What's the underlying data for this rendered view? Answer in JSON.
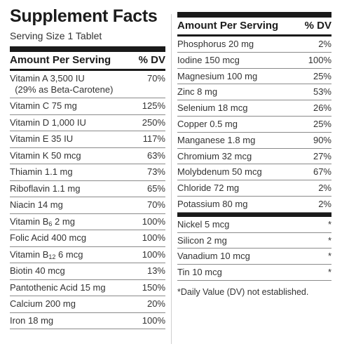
{
  "title": "Supplement Facts",
  "serving": "Serving Size 1 Tablet",
  "header": {
    "amount": "Amount Per Serving",
    "dv": "% DV"
  },
  "left_rows": [
    {
      "name": "Vitamin A 3,500 IU",
      "note": "(29% as Beta-Carotene)",
      "dv": "70%"
    },
    {
      "name": "Vitamin C 75 mg",
      "dv": "125%"
    },
    {
      "name": "Vitamin D 1,000 IU",
      "dv": "250%"
    },
    {
      "name": "Vitamin E 35 IU",
      "dv": "117%"
    },
    {
      "name": "Vitamin K 50 mcg",
      "dv": "63%"
    },
    {
      "name": "Thiamin 1.1 mg",
      "dv": "73%"
    },
    {
      "name": "Riboflavin 1.1 mg",
      "dv": "65%"
    },
    {
      "name": "Niacin 14 mg",
      "dv": "70%"
    },
    {
      "pre": "Vitamin B",
      "subscript": "6",
      "post": " 2 mg",
      "dv": "100%"
    },
    {
      "name": "Folic Acid 400 mcg",
      "dv": "100%"
    },
    {
      "pre": "Vitamin B",
      "subscript": "12",
      "post": " 6 mcg",
      "dv": "100%"
    },
    {
      "name": "Biotin 40 mcg",
      "dv": "13%"
    },
    {
      "name": "Pantothenic Acid 15 mg",
      "dv": "150%"
    },
    {
      "name": "Calcium 200 mg",
      "dv": "20%"
    },
    {
      "name": "Iron 18 mg",
      "dv": "100%"
    }
  ],
  "right_rows": [
    {
      "name": "Phosphorus 20 mg",
      "dv": "2%"
    },
    {
      "name": "Iodine 150 mcg",
      "dv": "100%"
    },
    {
      "name": "Magnesium 100 mg",
      "dv": "25%"
    },
    {
      "name": "Zinc 8 mg",
      "dv": "53%"
    },
    {
      "name": "Selenium 18 mcg",
      "dv": "26%"
    },
    {
      "name": "Copper 0.5 mg",
      "dv": "25%"
    },
    {
      "name": "Manganese 1.8 mg",
      "dv": "90%"
    },
    {
      "name": "Chromium 32 mcg",
      "dv": "27%"
    },
    {
      "name": "Molybdenum 50 mcg",
      "dv": "67%"
    },
    {
      "name": "Chloride 72 mg",
      "dv": "2%"
    },
    {
      "name": "Potassium 80 mg",
      "dv": "2%"
    }
  ],
  "right_rows2": [
    {
      "name": "Nickel 5 mcg",
      "dv": "*"
    },
    {
      "name": "Silicon 2 mg",
      "dv": "*"
    },
    {
      "name": "Vanadium 10 mcg",
      "dv": "*"
    },
    {
      "name": "Tin 10 mcg",
      "dv": "*"
    }
  ],
  "footnote": "*Daily Value (DV) not established."
}
